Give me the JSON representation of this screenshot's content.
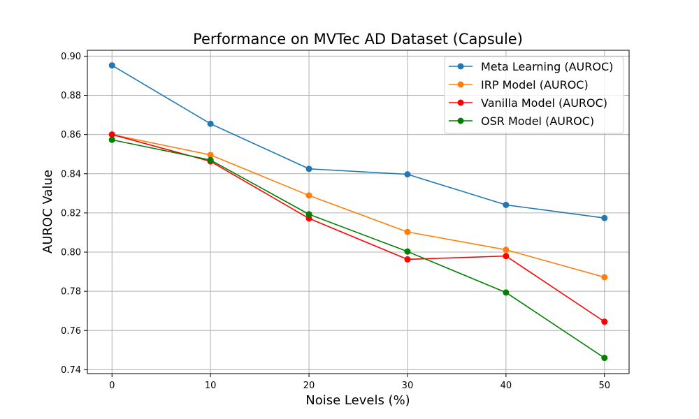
{
  "chart_data": {
    "type": "line",
    "title": "Performance on MVTec AD Dataset (Capsule)",
    "xlabel": "Noise Levels (%)",
    "ylabel": "AUROC Value",
    "x": [
      0,
      10,
      20,
      30,
      40,
      50
    ],
    "xlim": [
      -2.5,
      52.5
    ],
    "ylim": [
      0.738,
      0.903
    ],
    "xticks": [
      0,
      10,
      20,
      30,
      40,
      50
    ],
    "xtick_labels": [
      "0",
      "10",
      "20",
      "30",
      "40",
      "50"
    ],
    "yticks": [
      0.74,
      0.76,
      0.78,
      0.8,
      0.82,
      0.84,
      0.86,
      0.88,
      0.9
    ],
    "ytick_labels": [
      "0.74",
      "0.76",
      "0.78",
      "0.80",
      "0.82",
      "0.84",
      "0.86",
      "0.88",
      "0.90"
    ],
    "grid": true,
    "legend_position": "top-right",
    "series": [
      {
        "name": "Meta Learning (AUROC)",
        "color": "#1f77b4",
        "values": [
          0.8953,
          0.8655,
          0.8425,
          0.8397,
          0.8241,
          0.8174
        ]
      },
      {
        "name": "IRP Model (AUROC)",
        "color": "#ff7f0e",
        "values": [
          0.86,
          0.8496,
          0.8289,
          0.8103,
          0.8012,
          0.7872
        ]
      },
      {
        "name": "Vanilla Model (AUROC)",
        "color": "#ff0000",
        "values": [
          0.86,
          0.8463,
          0.8172,
          0.7963,
          0.798,
          0.7645
        ]
      },
      {
        "name": "OSR Model (AUROC)",
        "color": "#008000",
        "values": [
          0.8573,
          0.847,
          0.8193,
          0.8003,
          0.7794,
          0.746
        ]
      }
    ]
  }
}
